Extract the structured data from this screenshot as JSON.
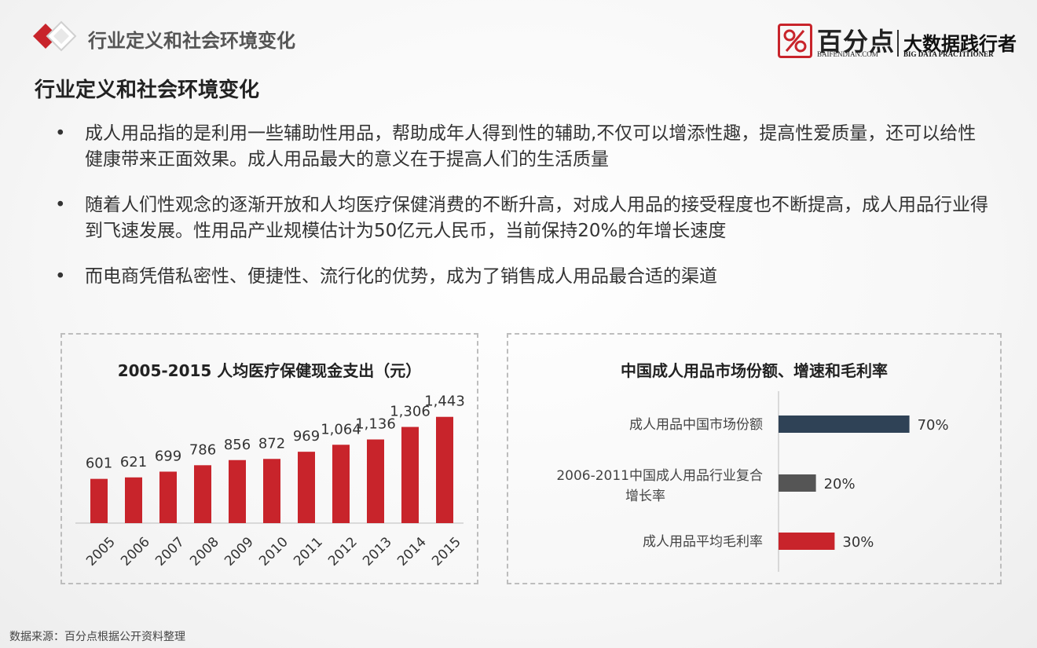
{
  "header": {
    "title": "行业定义和社会环境变化",
    "logo_icon": "percent-icon",
    "logo_text": "百分点",
    "logo_domain": "BAIFENDIAN.COM",
    "slogan_cn": "大数据践行者",
    "slogan_en": "BIG DATA PRACTITIONER"
  },
  "section_title": "行业定义和社会环境变化",
  "bullets": [
    {
      "dot": "•",
      "text": "成人用品指的是利用一些辅助性用品，帮助成年人得到性的辅助,不仅可以增添性趣，提高性爱质量，还可以给性健康带来正面效果。成人用品最大的意义在于提高人们的生活质量"
    },
    {
      "dot": "•",
      "text": "随着人们性观念的逐渐开放和人均医疗保健消费的不断升高，对成人用品的接受程度也不断提高，成人用品行业得到飞速发展。性用品产业规模估计为50亿元人民币，当前保持20%的年增长速度"
    },
    {
      "dot": "•",
      "text": "而电商凭借私密性、便捷性、流行化的优势，成为了销售成人用品最合适的渠道"
    }
  ],
  "chart_data": [
    {
      "type": "bar",
      "title": "2005-2015 人均医疗保健现金支出（元）",
      "categories": [
        "2005",
        "2006",
        "2007",
        "2008",
        "2009",
        "2010",
        "2011",
        "2012",
        "2013",
        "2014",
        "2015"
      ],
      "values": [
        601,
        621,
        699,
        786,
        856,
        872,
        969,
        1064,
        1136,
        1306,
        1443
      ],
      "value_labels": [
        "601",
        "621",
        "699",
        "786",
        "856",
        "872",
        "969",
        "1,064",
        "1,136",
        "1,306",
        "1,443"
      ],
      "ylim": [
        0,
        1600
      ],
      "grid": false,
      "bar_color": "#c8242b"
    },
    {
      "type": "bar",
      "orientation": "horizontal",
      "title": "中国成人用品市场份额、增速和毛利率",
      "categories": [
        "成人用品中国市场份额",
        "2006-2011中国成人用品行业复合增长率",
        "成人用品平均毛利率"
      ],
      "label_lines": [
        [
          "成人用品中国市场份额"
        ],
        [
          "2006-2011中国成人用品行业复合",
          "增长率"
        ],
        [
          "成人用品平均毛利率"
        ]
      ],
      "values": [
        70,
        20,
        30
      ],
      "value_labels": [
        "70%",
        "20%",
        "30%"
      ],
      "xlim": [
        0,
        100
      ],
      "colors": [
        "#2f4256",
        "#555555",
        "#c8242b"
      ]
    }
  ],
  "footer": "数据来源：百分点根据公开资料整理"
}
